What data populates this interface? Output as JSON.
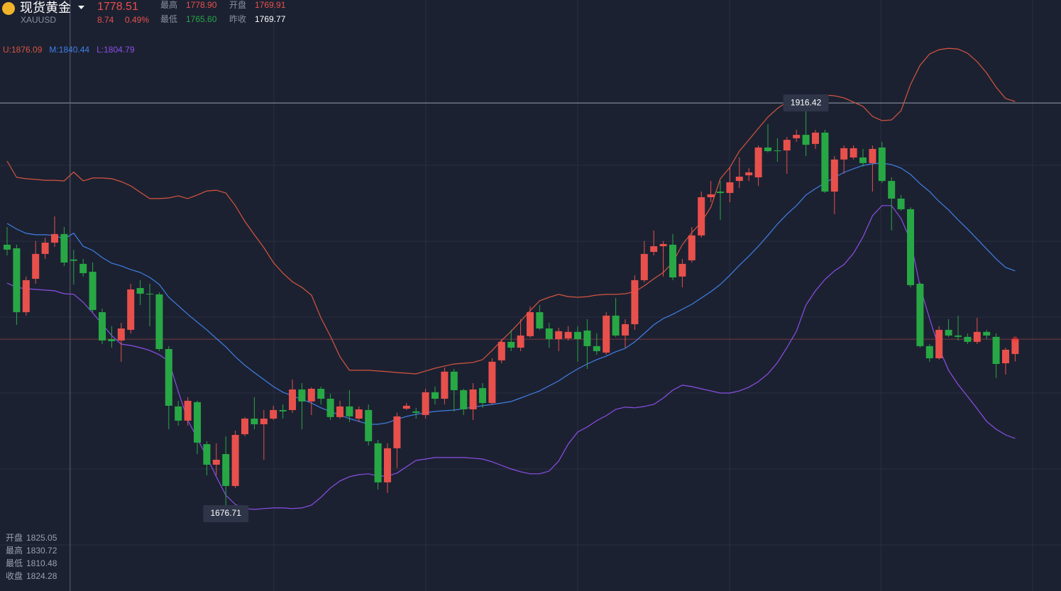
{
  "header": {
    "name": "现货黄金",
    "symbol": "XAUUSD",
    "price": "1778.51",
    "change": "8.74",
    "change_pct": "0.49%",
    "stats": [
      [
        "最高",
        "1778.90"
      ],
      [
        "开盘",
        "1769.91"
      ],
      [
        "最低",
        "1765.60"
      ],
      [
        "昨收",
        "1769.77"
      ]
    ]
  },
  "chart_data": {
    "type": "candlestick",
    "ylim": [
      1631.6,
      1976.5
    ],
    "up_color": "#e8504c",
    "down_color": "#27a845",
    "crosshair_index": 7,
    "crosshair_labels": [
      "开盘",
      "最高",
      "最低",
      "收盘"
    ],
    "high_marker": [
      84,
      1
    ],
    "low_marker": [
      23,
      2
    ],
    "ohlc": [
      [
        1833.7,
        1844.0,
        1827.5,
        1830.8
      ],
      [
        1831.6,
        1833.7,
        1786.9,
        1794.3
      ],
      [
        1794.3,
        1815.1,
        1792.3,
        1813.0
      ],
      [
        1813.8,
        1835.8,
        1810.9,
        1828.3
      ],
      [
        1828.3,
        1837.8,
        1825.4,
        1834.9
      ],
      [
        1834.9,
        1850.2,
        1832.4,
        1839.9
      ],
      [
        1839.9,
        1844.0,
        1821.3,
        1823.3
      ],
      [
        1825.05,
        1830.72,
        1810.48,
        1824.28
      ],
      [
        1822.5,
        1825.4,
        1815.1,
        1817.1
      ],
      [
        1817.9,
        1823.3,
        1794.3,
        1795.6
      ],
      [
        1794.3,
        1796.4,
        1775.7,
        1777.8
      ],
      [
        1778.6,
        1786.1,
        1773.6,
        1777.4
      ],
      [
        1777.8,
        1788.1,
        1765.4,
        1784.8
      ],
      [
        1784.0,
        1810.9,
        1781.9,
        1807.6
      ],
      [
        1808.4,
        1813.0,
        1798.5,
        1805.1
      ],
      [
        1805.1,
        1810.9,
        1786.1,
        1804.7
      ],
      [
        1804.7,
        1805.9,
        1771.6,
        1772.8
      ],
      [
        1772.8,
        1774.5,
        1726.0,
        1739.7
      ],
      [
        1739.3,
        1742.6,
        1728.1,
        1731.0
      ],
      [
        1731.0,
        1744.7,
        1728.1,
        1742.6
      ],
      [
        1741.8,
        1742.6,
        1711.5,
        1718.2
      ],
      [
        1717.3,
        1719.0,
        1699.1,
        1705.3
      ],
      [
        1705.3,
        1717.8,
        1699.1,
        1708.2
      ],
      [
        1711.5,
        1721.9,
        1676.71,
        1692.9
      ],
      [
        1692.9,
        1725.2,
        1691.7,
        1722.7
      ],
      [
        1723.1,
        1733.1,
        1721.9,
        1732.2
      ],
      [
        1732.2,
        1744.7,
        1726.0,
        1728.9
      ],
      [
        1728.9,
        1737.2,
        1708.2,
        1732.2
      ],
      [
        1732.2,
        1739.7,
        1731.4,
        1737.2
      ],
      [
        1737.2,
        1740.5,
        1732.2,
        1736.4
      ],
      [
        1737.2,
        1755.0,
        1735.6,
        1749.2
      ],
      [
        1749.2,
        1752.9,
        1726.0,
        1742.2
      ],
      [
        1742.2,
        1750.5,
        1734.3,
        1749.6
      ],
      [
        1749.6,
        1750.9,
        1740.5,
        1743.8
      ],
      [
        1743.8,
        1746.7,
        1731.4,
        1733.1
      ],
      [
        1733.1,
        1742.6,
        1732.2,
        1739.3
      ],
      [
        1739.3,
        1748.8,
        1730.2,
        1733.5
      ],
      [
        1732.2,
        1739.3,
        1730.2,
        1737.6
      ],
      [
        1737.2,
        1740.5,
        1716.5,
        1719.0
      ],
      [
        1717.8,
        1719.8,
        1690.8,
        1695.0
      ],
      [
        1695.0,
        1717.8,
        1688.8,
        1714.9
      ],
      [
        1714.9,
        1735.6,
        1703.3,
        1733.5
      ],
      [
        1738.0,
        1741.3,
        1737.2,
        1739.7
      ],
      [
        1736.4,
        1738.5,
        1732.2,
        1735.6
      ],
      [
        1734.3,
        1749.6,
        1732.2,
        1747.6
      ],
      [
        1747.6,
        1750.9,
        1740.5,
        1743.8
      ],
      [
        1743.8,
        1762.0,
        1740.5,
        1759.6
      ],
      [
        1759.6,
        1761.2,
        1736.4,
        1748.8
      ],
      [
        1748.8,
        1749.6,
        1734.3,
        1737.6
      ],
      [
        1737.6,
        1752.9,
        1731.4,
        1749.2
      ],
      [
        1750.0,
        1752.9,
        1738.5,
        1741.3
      ],
      [
        1741.3,
        1767.4,
        1740.5,
        1765.4
      ],
      [
        1766.2,
        1778.6,
        1764.5,
        1777.0
      ],
      [
        1777.0,
        1784.0,
        1771.6,
        1773.6
      ],
      [
        1773.6,
        1790.2,
        1771.6,
        1780.7
      ],
      [
        1780.3,
        1797.7,
        1779.4,
        1794.3
      ],
      [
        1794.3,
        1798.5,
        1784.0,
        1784.8
      ],
      [
        1784.8,
        1788.1,
        1773.6,
        1778.6
      ],
      [
        1778.6,
        1785.2,
        1771.6,
        1783.2
      ],
      [
        1779.0,
        1786.1,
        1777.8,
        1782.8
      ],
      [
        1782.8,
        1786.1,
        1765.4,
        1778.6
      ],
      [
        1783.6,
        1790.2,
        1761.2,
        1774.5
      ],
      [
        1774.5,
        1781.9,
        1769.5,
        1771.6
      ],
      [
        1770.7,
        1794.3,
        1769.5,
        1792.3
      ],
      [
        1792.3,
        1802.6,
        1779.9,
        1780.7
      ],
      [
        1780.7,
        1790.2,
        1773.6,
        1787.3
      ],
      [
        1787.3,
        1815.9,
        1784.0,
        1813.0
      ],
      [
        1813.0,
        1835.8,
        1811.7,
        1828.3
      ],
      [
        1829.5,
        1842.0,
        1827.5,
        1832.8
      ],
      [
        1832.8,
        1835.8,
        1815.1,
        1834.1
      ],
      [
        1833.7,
        1839.9,
        1813.0,
        1814.6
      ],
      [
        1815.1,
        1825.4,
        1808.8,
        1822.5
      ],
      [
        1824.6,
        1844.0,
        1823.3,
        1839.1
      ],
      [
        1839.1,
        1864.7,
        1837.8,
        1861.4
      ],
      [
        1861.4,
        1870.9,
        1858.5,
        1863.1
      ],
      [
        1864.7,
        1870.9,
        1848.2,
        1863.9
      ],
      [
        1863.9,
        1879.2,
        1858.5,
        1870.1
      ],
      [
        1870.9,
        1884.6,
        1866.8,
        1873.4
      ],
      [
        1874.2,
        1878.4,
        1870.9,
        1875.9
      ],
      [
        1873.0,
        1891.6,
        1868.0,
        1890.4
      ],
      [
        1890.4,
        1904.0,
        1887.5,
        1888.3
      ],
      [
        1888.7,
        1895.8,
        1882.1,
        1888.3
      ],
      [
        1888.7,
        1896.6,
        1875.1,
        1894.9
      ],
      [
        1895.8,
        1900.7,
        1893.7,
        1897.8
      ],
      [
        1897.8,
        1916.42,
        1885.4,
        1892.0
      ],
      [
        1892.5,
        1900.7,
        1889.6,
        1899.1
      ],
      [
        1899.1,
        1900.7,
        1863.9,
        1864.7
      ],
      [
        1864.7,
        1885.4,
        1851.5,
        1883.4
      ],
      [
        1883.4,
        1891.6,
        1875.1,
        1890.0
      ],
      [
        1884.6,
        1891.6,
        1883.4,
        1890.0
      ],
      [
        1884.6,
        1889.6,
        1879.2,
        1881.3
      ],
      [
        1881.3,
        1891.6,
        1864.7,
        1889.6
      ],
      [
        1890.4,
        1893.7,
        1869.7,
        1870.9
      ],
      [
        1870.9,
        1873.0,
        1842.0,
        1860.6
      ],
      [
        1860.6,
        1862.7,
        1853.5,
        1854.4
      ],
      [
        1854.4,
        1855.6,
        1808.8,
        1810.1
      ],
      [
        1810.9,
        1811.7,
        1773.6,
        1774.5
      ],
      [
        1774.5,
        1775.7,
        1765.4,
        1767.4
      ],
      [
        1767.4,
        1786.1,
        1766.6,
        1784.0
      ],
      [
        1784.0,
        1790.2,
        1779.9,
        1780.7
      ],
      [
        1780.7,
        1792.3,
        1777.8,
        1779.9
      ],
      [
        1779.9,
        1781.9,
        1775.7,
        1777.0
      ],
      [
        1777.0,
        1791.0,
        1775.7,
        1782.8
      ],
      [
        1782.8,
        1784.0,
        1778.6,
        1780.7
      ],
      [
        1779.9,
        1781.9,
        1755.9,
        1764.1
      ],
      [
        1764.5,
        1773.6,
        1757.9,
        1772.4
      ],
      [
        1769.91,
        1778.9,
        1765.6,
        1778.51
      ]
    ],
    "series": [
      {
        "name": "U:1876.09",
        "color": "#d5553f",
        "values": [
          1882.5,
          1873.0,
          1872.2,
          1871.8,
          1871.3,
          1871.3,
          1870.9,
          1876.09,
          1870.9,
          1872.6,
          1872.6,
          1872.2,
          1870.5,
          1868.0,
          1864.3,
          1860.6,
          1860.6,
          1861.0,
          1862.2,
          1860.6,
          1862.7,
          1865.1,
          1865.5,
          1863.9,
          1856.5,
          1847.3,
          1839.5,
          1832.0,
          1823.3,
          1817.1,
          1812.1,
          1808.8,
          1804.3,
          1791.0,
          1780.3,
          1768.3,
          1760.4,
          1760.4,
          1760.4,
          1760.0,
          1759.6,
          1759.1,
          1758.7,
          1758.3,
          1760.0,
          1761.6,
          1762.9,
          1764.1,
          1764.5,
          1765.0,
          1766.6,
          1772.0,
          1777.8,
          1783.2,
          1789.0,
          1795.2,
          1801.0,
          1803.0,
          1804.7,
          1803.4,
          1803.0,
          1803.4,
          1804.3,
          1804.7,
          1804.7,
          1805.1,
          1806.3,
          1809.7,
          1813.8,
          1817.5,
          1823.3,
          1833.7,
          1840.7,
          1846.9,
          1855.6,
          1872.2,
          1878.8,
          1888.3,
          1894.9,
          1901.6,
          1908.2,
          1913.2,
          1916.9,
          1918.5,
          1920.6,
          1921.0,
          1921.0,
          1920.6,
          1919.4,
          1916.9,
          1914.4,
          1908.6,
          1906.1,
          1906.5,
          1911.9,
          1927.2,
          1938.4,
          1945.0,
          1947.5,
          1948.3,
          1947.9,
          1945.4,
          1940.5,
          1933.9,
          1925.6,
          1919.0,
          1917.3
        ]
      },
      {
        "name": "M:1840.44",
        "color": "#3f7fe6",
        "values": [
          1846.1,
          1842.8,
          1840.3,
          1839.5,
          1839.5,
          1839.1,
          1837.0,
          1840.44,
          1832.8,
          1830.4,
          1826.2,
          1822.9,
          1821.3,
          1819.2,
          1817.5,
          1814.6,
          1810.5,
          1803.0,
          1798.1,
          1793.1,
          1788.5,
          1784.0,
          1779.0,
          1774.1,
          1768.3,
          1763.3,
          1759.1,
          1755.0,
          1750.9,
          1747.6,
          1745.5,
          1743.4,
          1741.3,
          1738.5,
          1736.4,
          1734.3,
          1732.2,
          1730.6,
          1728.9,
          1728.9,
          1729.8,
          1731.8,
          1733.5,
          1734.7,
          1735.6,
          1736.4,
          1736.8,
          1737.2,
          1738.0,
          1738.9,
          1739.7,
          1740.5,
          1741.3,
          1742.2,
          1744.2,
          1746.3,
          1748.4,
          1751.3,
          1754.2,
          1757.9,
          1761.2,
          1764.1,
          1766.6,
          1768.7,
          1771.2,
          1773.2,
          1777.0,
          1781.9,
          1786.9,
          1790.6,
          1793.1,
          1796.0,
          1798.9,
          1802.6,
          1806.3,
          1810.5,
          1815.9,
          1821.7,
          1827.0,
          1832.8,
          1839.1,
          1845.7,
          1851.5,
          1856.5,
          1862.7,
          1866.4,
          1869.7,
          1873.0,
          1875.9,
          1878.0,
          1880.0,
          1880.9,
          1881.3,
          1880.5,
          1878.4,
          1874.7,
          1869.3,
          1864.7,
          1858.9,
          1854.0,
          1848.2,
          1842.8,
          1837.0,
          1831.2,
          1825.4,
          1820.4,
          1818.4
        ]
      },
      {
        "name": "L:1804.79",
        "color": "#8c4fe8",
        "values": [
          1811.3,
          1808.8,
          1808.0,
          1807.6,
          1807.2,
          1806.8,
          1805.1,
          1804.79,
          1800.1,
          1793.9,
          1787.3,
          1780.7,
          1775.7,
          1774.9,
          1773.6,
          1772.0,
          1769.5,
          1765.8,
          1748.0,
          1731.4,
          1720.6,
          1709.9,
          1698.3,
          1687.5,
          1682.1,
          1679.7,
          1679.2,
          1679.7,
          1680.1,
          1680.1,
          1679.7,
          1680.1,
          1681.7,
          1686.3,
          1691.7,
          1695.8,
          1698.3,
          1699.5,
          1700.0,
          1698.7,
          1698.7,
          1700.4,
          1704.1,
          1707.8,
          1708.6,
          1709.5,
          1709.5,
          1709.5,
          1709.5,
          1709.1,
          1708.6,
          1707.0,
          1704.9,
          1702.8,
          1701.2,
          1700.0,
          1700.0,
          1701.6,
          1707.4,
          1717.3,
          1724.4,
          1727.3,
          1731.0,
          1733.9,
          1737.6,
          1738.9,
          1738.5,
          1739.3,
          1740.5,
          1744.2,
          1748.8,
          1751.7,
          1750.9,
          1749.6,
          1748.4,
          1747.1,
          1747.1,
          1748.4,
          1750.5,
          1753.8,
          1758.3,
          1764.9,
          1773.6,
          1783.2,
          1798.5,
          1806.8,
          1813.4,
          1818.4,
          1822.1,
          1828.7,
          1838.2,
          1850.6,
          1856.5,
          1856.5,
          1849.0,
          1836.2,
          1809.2,
          1790.6,
          1773.2,
          1760.4,
          1752.1,
          1745.1,
          1738.0,
          1730.6,
          1726.0,
          1722.7,
          1720.6
        ]
      }
    ]
  }
}
